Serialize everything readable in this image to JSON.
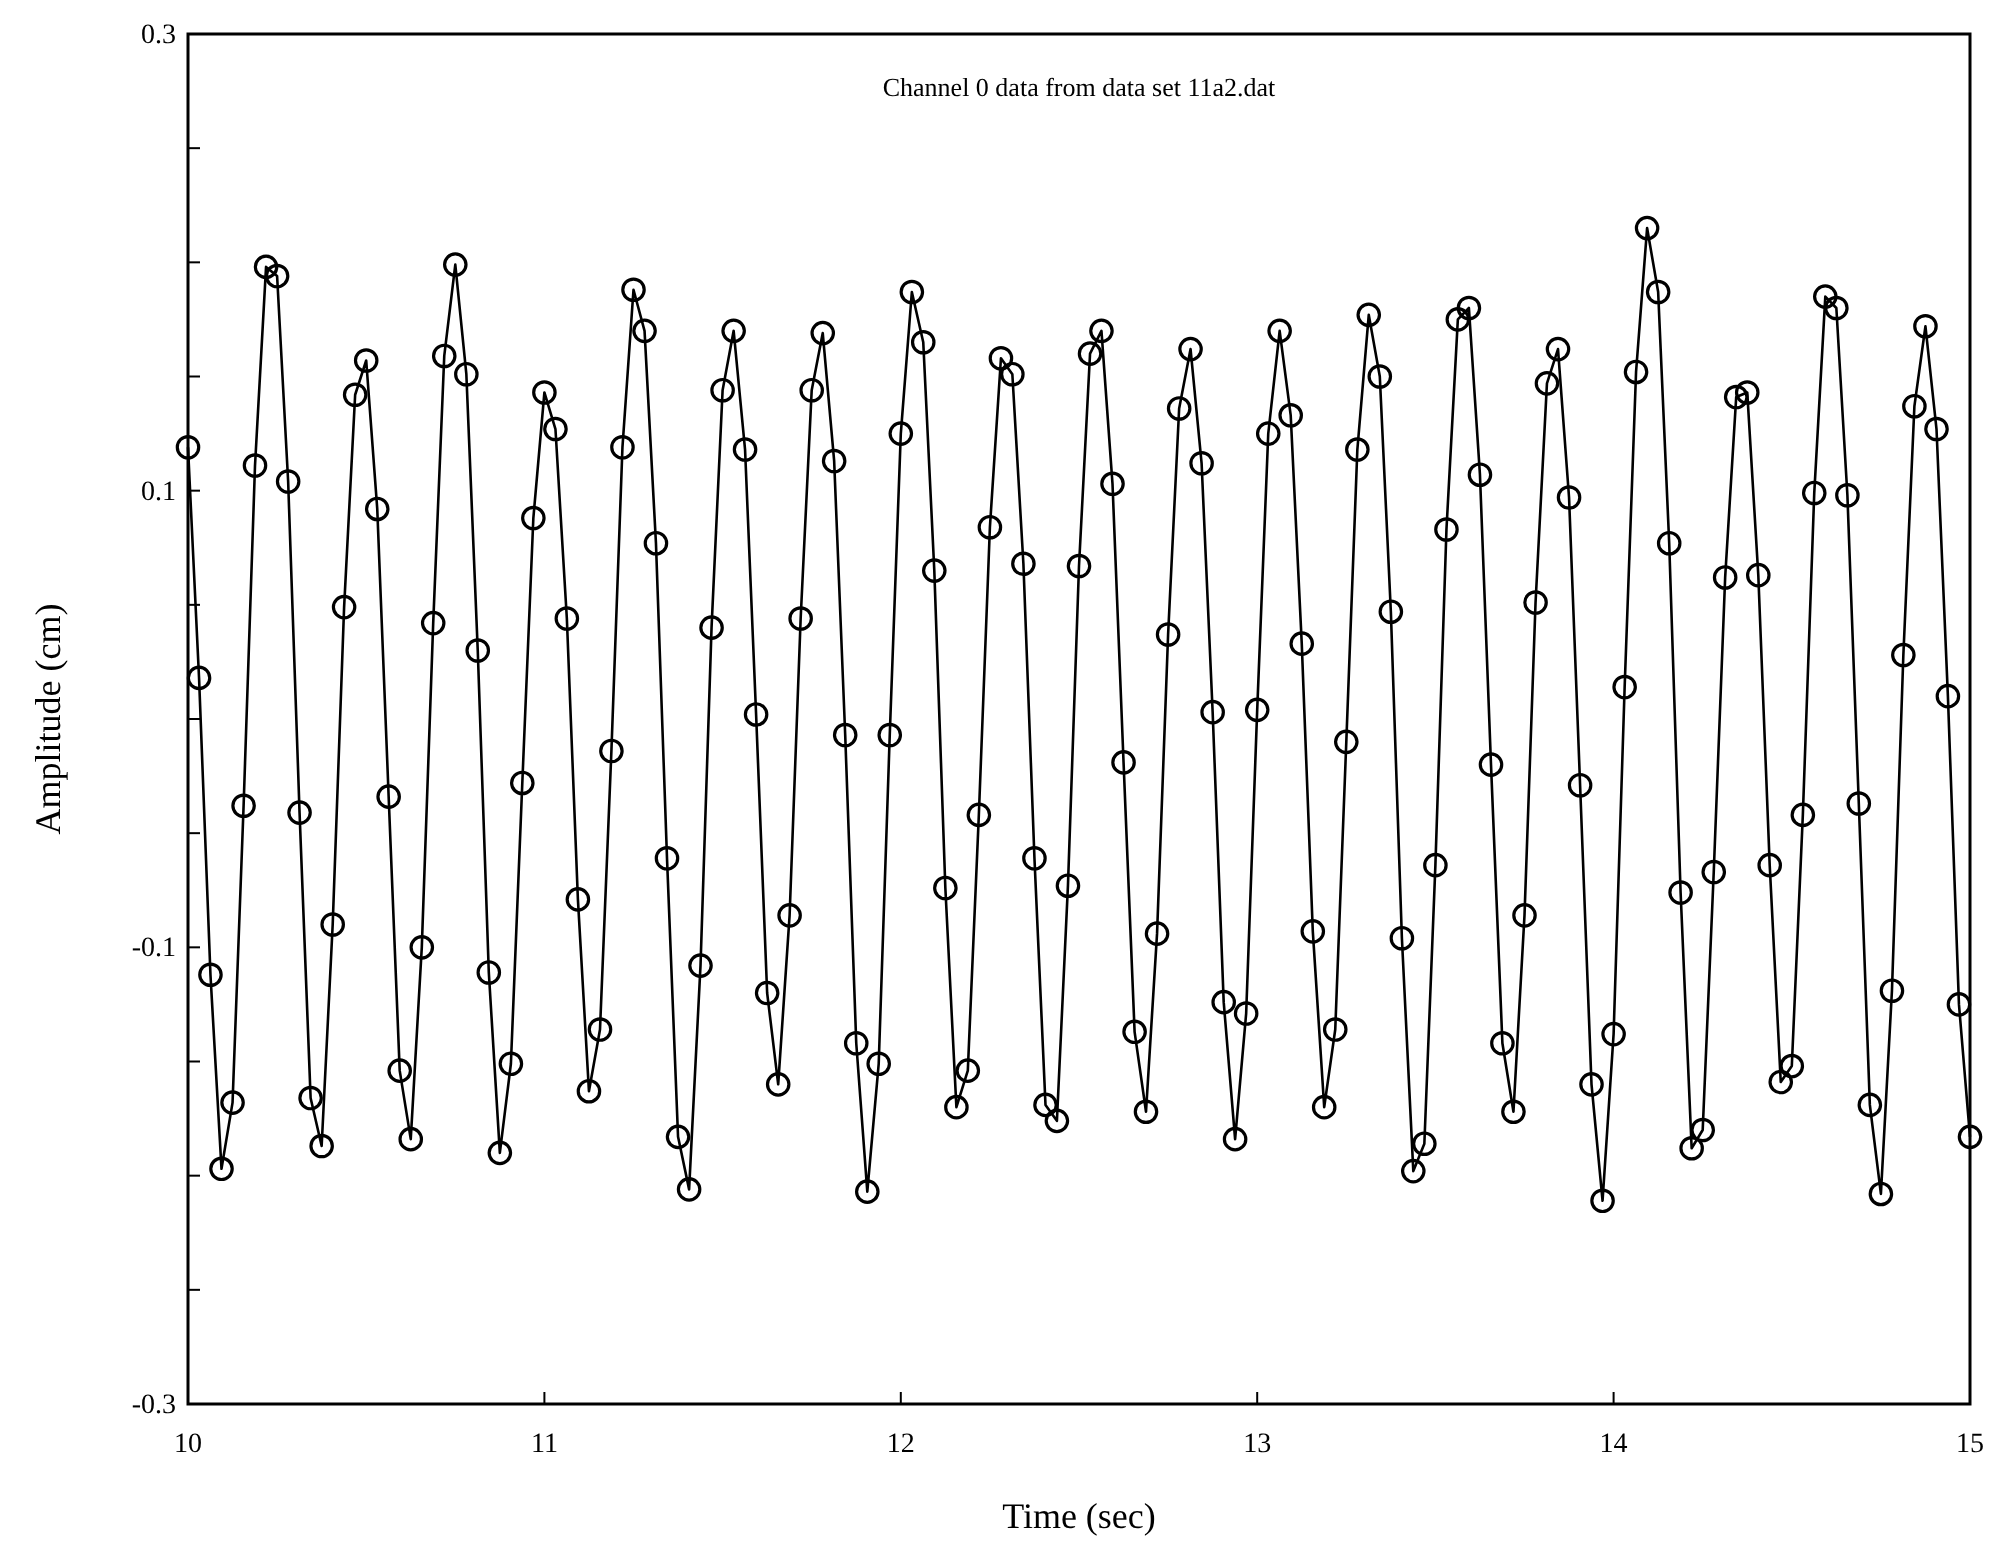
{
  "chart_data": {
    "type": "line",
    "title": "Channel 0 data from data set 11a2.dat",
    "xlabel": "Time (sec)",
    "ylabel": "Amplitude (cm)",
    "x": [
      10,
      10.031,
      10.063,
      10.094,
      10.125,
      10.156,
      10.188,
      10.219,
      10.25,
      10.281,
      10.313,
      10.344,
      10.375,
      10.406,
      10.438,
      10.469,
      10.5,
      10.531,
      10.563,
      10.594,
      10.625,
      10.656,
      10.688,
      10.719,
      10.75,
      10.781,
      10.813,
      10.844,
      10.875,
      10.906,
      10.938,
      10.969,
      11,
      11.031,
      11.063,
      11.094,
      11.125,
      11.156,
      11.188,
      11.219,
      11.25,
      11.281,
      11.313,
      11.344,
      11.375,
      11.406,
      11.438,
      11.469,
      11.5,
      11.531,
      11.563,
      11.594,
      11.625,
      11.656,
      11.688,
      11.719,
      11.75,
      11.781,
      11.813,
      11.844,
      11.875,
      11.906,
      11.938,
      11.969,
      12,
      12.031,
      12.063,
      12.094,
      12.125,
      12.156,
      12.188,
      12.219,
      12.25,
      12.281,
      12.313,
      12.344,
      12.375,
      12.406,
      12.438,
      12.469,
      12.5,
      12.531,
      12.563,
      12.594,
      12.625,
      12.656,
      12.688,
      12.719,
      12.75,
      12.781,
      12.813,
      12.844,
      12.875,
      12.906,
      12.938,
      12.969,
      13,
      13.031,
      13.063,
      13.094,
      13.125,
      13.156,
      13.188,
      13.219,
      13.25,
      13.281,
      13.313,
      13.344,
      13.375,
      13.406,
      13.438,
      13.469,
      13.5,
      13.531,
      13.563,
      13.594,
      13.625,
      13.656,
      13.688,
      13.719,
      13.75,
      13.781,
      13.813,
      13.844,
      13.875,
      13.906,
      13.938,
      13.969,
      14,
      14.031,
      14.063,
      14.094,
      14.125,
      14.156,
      14.188,
      14.219,
      14.25,
      14.281,
      14.313,
      14.344,
      14.375,
      14.406,
      14.438,
      14.469,
      14.5,
      14.531,
      14.563,
      14.594,
      14.625,
      14.656,
      14.688,
      14.719,
      14.75,
      14.781,
      14.813,
      14.844,
      14.875,
      14.906,
      14.938,
      14.969,
      15
    ],
    "series": [
      {
        "color": "#000000",
        "values": [
          0.119,
          0.018,
          -0.112,
          -0.197,
          -0.168,
          -0.038,
          0.111,
          0.198,
          0.194,
          0.104,
          -0.041,
          -0.166,
          -0.187,
          -0.09,
          0.049,
          0.142,
          0.157,
          0.092,
          -0.034,
          -0.154,
          -0.184,
          -0.1,
          0.042,
          0.159,
          0.199,
          0.151,
          0.03,
          -0.111,
          -0.19,
          -0.151,
          -0.028,
          0.088,
          0.143,
          0.127,
          0.044,
          -0.079,
          -0.163,
          -0.136,
          -0.014,
          0.119,
          0.188,
          0.17,
          0.077,
          -0.061,
          -0.183,
          -0.206,
          -0.108,
          0.04,
          0.144,
          0.17,
          0.118,
          0.002,
          -0.12,
          -0.16,
          -0.086,
          0.044,
          0.144,
          0.169,
          0.113,
          -0.007,
          -0.142,
          -0.207,
          -0.151,
          -0.007,
          0.125,
          0.187,
          0.165,
          0.065,
          -0.074,
          -0.17,
          -0.154,
          -0.042,
          0.084,
          0.158,
          0.151,
          0.068,
          -0.061,
          -0.169,
          -0.176,
          -0.073,
          0.067,
          0.16,
          0.17,
          0.103,
          -0.019,
          -0.137,
          -0.172,
          -0.094,
          0.037,
          0.136,
          0.162,
          0.112,
          0.003,
          -0.124,
          -0.184,
          -0.129,
          0.004,
          0.125,
          0.17,
          0.133,
          0.033,
          -0.093,
          -0.17,
          -0.136,
          -0.01,
          0.118,
          0.177,
          0.15,
          0.047,
          -0.096,
          -0.198,
          -0.186,
          -0.064,
          0.083,
          0.175,
          0.18,
          0.107,
          -0.02,
          -0.142,
          -0.172,
          -0.086,
          0.051,
          0.147,
          0.162,
          0.097,
          -0.029,
          -0.16,
          -0.211,
          -0.138,
          0.014,
          0.152,
          0.215,
          0.187,
          0.077,
          -0.076,
          -0.188,
          -0.18,
          -0.067,
          0.062,
          0.141,
          0.143,
          0.063,
          -0.064,
          -0.159,
          -0.152,
          -0.042,
          0.099,
          0.185,
          0.18,
          0.098,
          -0.037,
          -0.169,
          -0.208,
          -0.119,
          0.028,
          0.137,
          0.172,
          0.127,
          0.01,
          -0.125,
          -0.183
        ]
      }
    ],
    "xlim": [
      10,
      15
    ],
    "xticks": [
      10,
      11,
      12,
      13,
      14,
      15
    ],
    "ylim": [
      -0.3,
      0.3
    ],
    "yticks": [
      0.3,
      {
        "value": 0.25,
        "label": null
      },
      {
        "value": 0.2,
        "label": null
      },
      {
        "value": 0.15,
        "label": null
      },
      0.1,
      {
        "value": 0.05,
        "label": null
      },
      {
        "value": 0,
        "label": null
      },
      {
        "value": -0.05,
        "label": null
      },
      -0.1,
      {
        "value": -0.15,
        "label": null
      },
      {
        "value": -0.2,
        "label": null
      },
      {
        "value": -0.25,
        "label": null
      },
      -0.3
    ],
    "marker": "circle",
    "line_style": "solid",
    "grid": false
  }
}
